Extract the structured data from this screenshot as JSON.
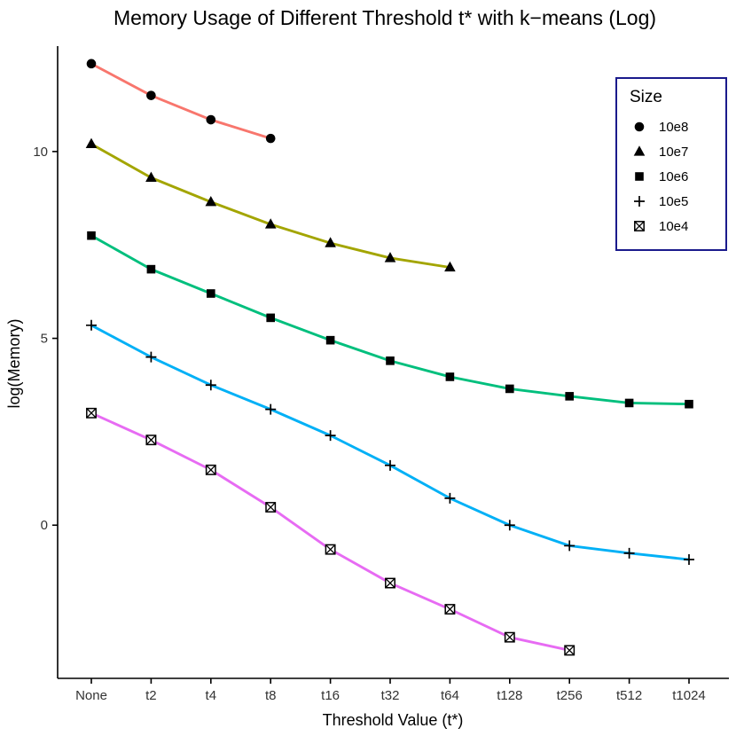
{
  "chart_data": {
    "type": "line",
    "title": "Memory Usage of Different Threshold t* with k−means (Log)",
    "xlabel": "Threshold Value (t*)",
    "ylabel": "log(Memory)",
    "legend_title": "Size",
    "legend_position": "top-right-inside",
    "grid": false,
    "categories": [
      "None",
      "t2",
      "t4",
      "t8",
      "t16",
      "t32",
      "t64",
      "t128",
      "t256",
      "t512",
      "t1024"
    ],
    "yticks": [
      0,
      5,
      10
    ],
    "ylim": [
      -4.1,
      12.75
    ],
    "series": [
      {
        "name": "10e8",
        "color": "#F8766D",
        "marker": "circle",
        "values": [
          12.35,
          11.5,
          10.85,
          10.35
        ]
      },
      {
        "name": "10e7",
        "color": "#A3A500",
        "marker": "triangle",
        "values": [
          10.2,
          9.3,
          8.65,
          8.05,
          7.55,
          7.15,
          6.9
        ]
      },
      {
        "name": "10e6",
        "color": "#00BF7D",
        "marker": "square",
        "values": [
          7.75,
          6.85,
          6.2,
          5.55,
          4.95,
          4.4,
          3.97,
          3.65,
          3.45,
          3.27,
          3.24
        ]
      },
      {
        "name": "10e5",
        "color": "#00B0F6",
        "marker": "plus",
        "values": [
          5.35,
          4.5,
          3.75,
          3.1,
          2.4,
          1.6,
          0.72,
          0.0,
          -0.55,
          -0.75,
          -0.92
        ]
      },
      {
        "name": "10e4",
        "color": "#E76BF3",
        "marker": "square-cross",
        "values": [
          3.0,
          2.28,
          1.48,
          0.48,
          -0.65,
          -1.55,
          -2.25,
          -3.0,
          -3.35
        ]
      }
    ],
    "colors": {
      "axis": "#000000",
      "tick_text": "#333333",
      "legend_border": "#1a1a8c",
      "background": "#ffffff"
    }
  }
}
